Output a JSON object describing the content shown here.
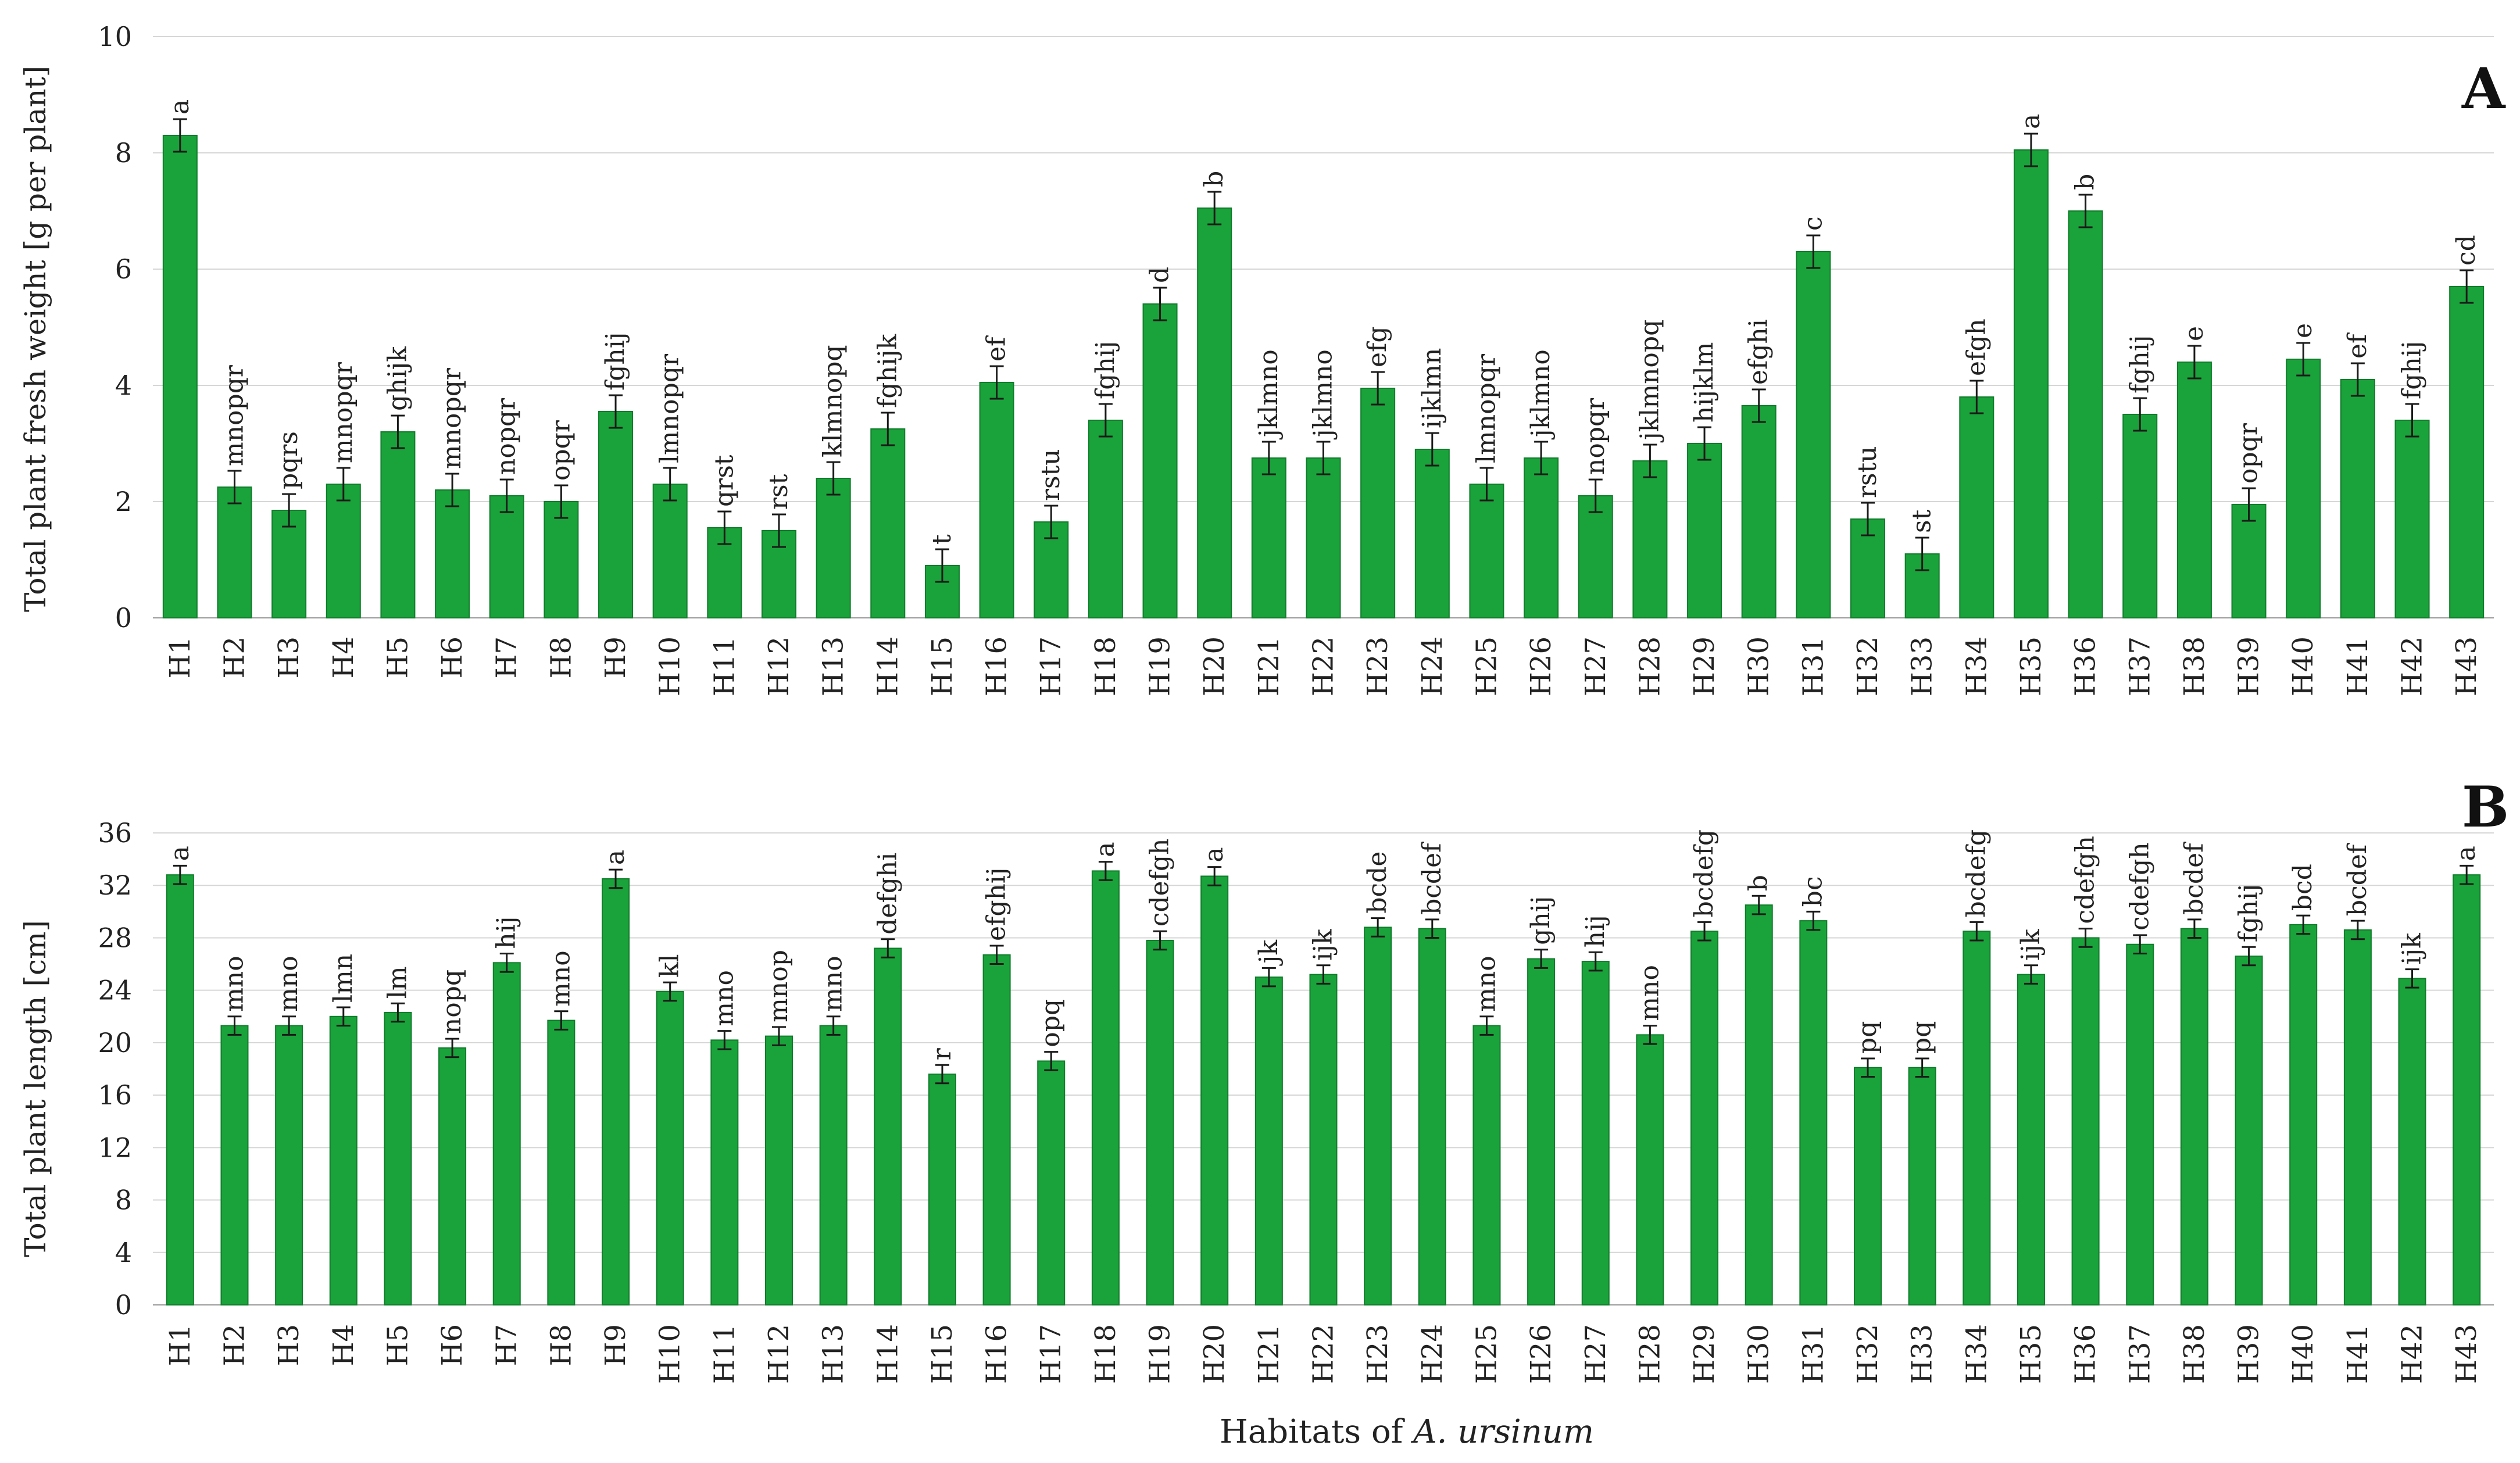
{
  "chart_data": [
    {
      "panel": "A",
      "type": "bar",
      "ylabel": "Total plant fresh weight [g per plant]",
      "ylim": [
        0,
        10
      ],
      "yticks": [
        "0",
        "2",
        "4",
        "6",
        "8",
        "10"
      ],
      "grid": true,
      "categories": [
        "H1",
        "H2",
        "H3",
        "H4",
        "H5",
        "H6",
        "H7",
        "H8",
        "H9",
        "H10",
        "H11",
        "H12",
        "H13",
        "H14",
        "H15",
        "H16",
        "H17",
        "H18",
        "H19",
        "H20",
        "H21",
        "H22",
        "H23",
        "H24",
        "H25",
        "H26",
        "H27",
        "H28",
        "H29",
        "H30",
        "H31",
        "H32",
        "H33",
        "H34",
        "H35",
        "H36",
        "H37",
        "H38",
        "H39",
        "H40",
        "H41",
        "H42",
        "H43"
      ],
      "values": [
        8.3,
        2.25,
        1.85,
        2.3,
        3.2,
        2.2,
        2.1,
        2.0,
        3.55,
        2.3,
        1.55,
        1.5,
        2.4,
        3.25,
        0.9,
        4.05,
        1.65,
        3.4,
        5.4,
        7.05,
        2.75,
        2.75,
        3.95,
        2.9,
        2.3,
        2.75,
        2.1,
        2.7,
        3.0,
        3.65,
        6.3,
        1.7,
        1.1,
        3.8,
        8.05,
        7.0,
        3.5,
        4.4,
        1.95,
        4.45,
        4.1,
        3.4,
        5.7
      ],
      "errors": [
        0.28,
        0.28,
        0.28,
        0.28,
        0.28,
        0.28,
        0.28,
        0.28,
        0.28,
        0.28,
        0.28,
        0.28,
        0.28,
        0.28,
        0.28,
        0.28,
        0.28,
        0.28,
        0.28,
        0.28,
        0.28,
        0.28,
        0.28,
        0.28,
        0.28,
        0.28,
        0.28,
        0.28,
        0.28,
        0.28,
        0.28,
        0.28,
        0.28,
        0.28,
        0.28,
        0.28,
        0.28,
        0.28,
        0.28,
        0.28,
        0.28,
        0.28,
        0.28
      ],
      "labels": [
        "a",
        "mnopqr",
        "pqrs",
        "mnopqr",
        "ghijk",
        "mnopqr",
        "nopqr",
        "opqr",
        "fghij",
        "lmnopqr",
        "qrst",
        "rst",
        "klmnopq",
        "fghijk",
        "t",
        "ef",
        "rstu",
        "fghij",
        "d",
        "b",
        "jklmno",
        "jklmno",
        "efg",
        "ijklmn",
        "lmnopqr",
        "jklmno",
        "nopqr",
        "jklmnopq",
        "hijklm",
        "efghi",
        "c",
        "rstu",
        "st",
        "efgh",
        "a",
        "b",
        "fghij",
        "e",
        "opqr",
        "e",
        "ef",
        "fghij",
        "cd"
      ]
    },
    {
      "panel": "B",
      "type": "bar",
      "ylabel": "Total plant length [cm]",
      "ylim": [
        0,
        36
      ],
      "yticks": [
        "0",
        "4",
        "8",
        "12",
        "16",
        "20",
        "24",
        "28",
        "32",
        "36"
      ],
      "grid": true,
      "categories": [
        "H1",
        "H2",
        "H3",
        "H4",
        "H5",
        "H6",
        "H7",
        "H8",
        "H9",
        "H10",
        "H11",
        "H12",
        "H13",
        "H14",
        "H15",
        "H16",
        "H17",
        "H18",
        "H19",
        "H20",
        "H21",
        "H22",
        "H23",
        "H24",
        "H25",
        "H26",
        "H27",
        "H28",
        "H29",
        "H30",
        "H31",
        "H32",
        "H33",
        "H34",
        "H35",
        "H36",
        "H37",
        "H38",
        "H39",
        "H40",
        "H41",
        "H42",
        "H43"
      ],
      "values": [
        32.8,
        21.3,
        21.3,
        22.0,
        22.3,
        19.6,
        26.1,
        21.7,
        32.5,
        23.9,
        20.2,
        20.5,
        21.3,
        27.2,
        17.6,
        26.7,
        18.6,
        33.1,
        27.8,
        32.7,
        25.0,
        25.2,
        28.8,
        28.7,
        21.3,
        26.4,
        26.2,
        20.6,
        28.5,
        30.5,
        29.3,
        18.1,
        18.1,
        28.5,
        25.2,
        28.0,
        27.5,
        28.7,
        26.6,
        29.0,
        28.6,
        24.9,
        32.8
      ],
      "errors": [
        0.7,
        0.7,
        0.7,
        0.7,
        0.7,
        0.7,
        0.7,
        0.7,
        0.7,
        0.7,
        0.7,
        0.7,
        0.7,
        0.7,
        0.7,
        0.7,
        0.7,
        0.7,
        0.7,
        0.7,
        0.7,
        0.7,
        0.7,
        0.7,
        0.7,
        0.7,
        0.7,
        0.7,
        0.7,
        0.7,
        0.7,
        0.7,
        0.7,
        0.7,
        0.7,
        0.7,
        0.7,
        0.7,
        0.7,
        0.7,
        0.7,
        0.7,
        0.7
      ],
      "labels": [
        "a",
        "mno",
        "mno",
        "lmn",
        "lm",
        "nopq",
        "hij",
        "mno",
        "a",
        "kl",
        "mno",
        "mnop",
        "mno",
        "defghi",
        "r",
        "efghij",
        "opq",
        "a",
        "cdefgh",
        "a",
        "jk",
        "ijk",
        "bcde",
        "bcdef",
        "mno",
        "ghij",
        "hij",
        "mno",
        "bcdefg",
        "b",
        "bc",
        "pq",
        "pq",
        "bcdefg",
        "ijk",
        "cdefgh",
        "cdefgh",
        "bcdef",
        "fghij",
        "bcd",
        "bcdef",
        "ijk",
        "a"
      ]
    }
  ],
  "xlabel_prefix": "Habitats of ",
  "xlabel_species": "A. ursinum",
  "colors": {
    "bar": "#1aa33b",
    "bar_edge": "#0f7d2a"
  }
}
